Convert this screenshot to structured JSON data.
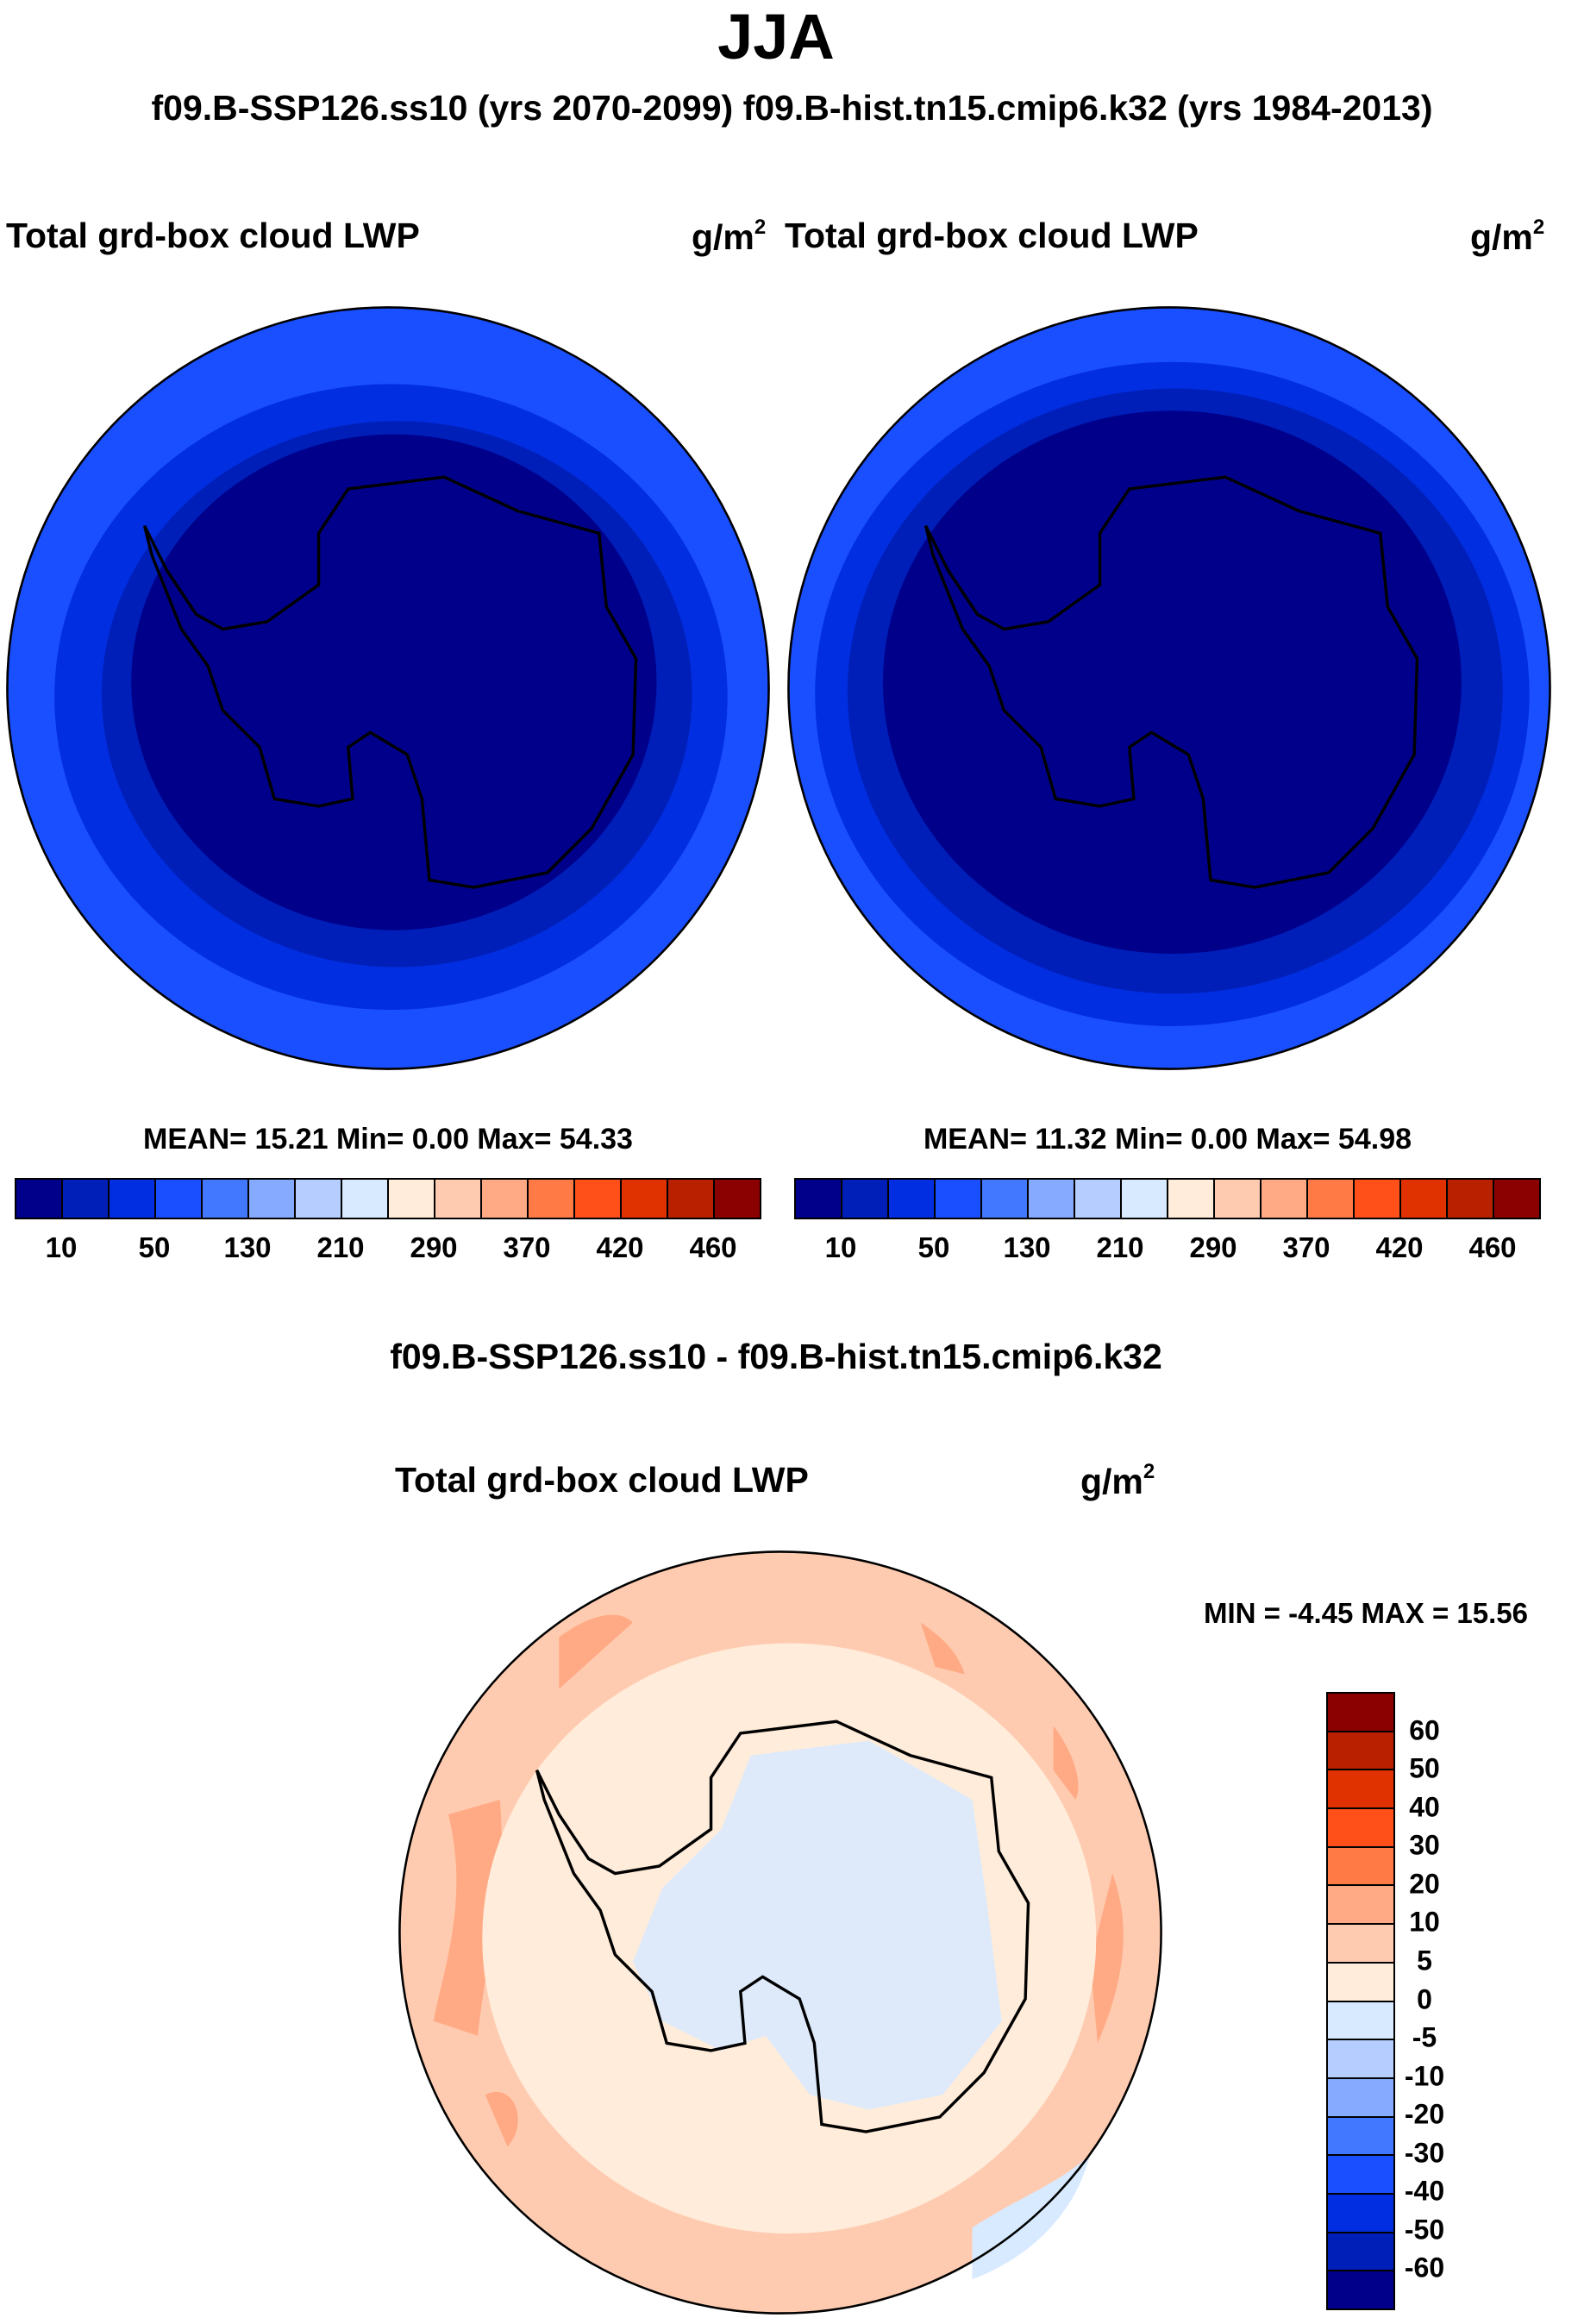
{
  "title": "JJA",
  "subtitle": "f09.B-SSP126.ss10 (yrs 2070-2099)  f09.B-hist.tn15.cmip6.k32 (yrs 1984-2013)",
  "chart_data": [
    {
      "type": "heatmap",
      "title": "Total grd-box cloud LWP",
      "units": "g/m",
      "units_exp": "2",
      "case": "f09.B-SSP126.ss10 (yrs 2070-2099)",
      "projection": "south polar stereographic",
      "stats": "MEAN=  15.21  Min=   0.00  Max=  54.33",
      "mean": 15.21,
      "min": 0.0,
      "max": 54.33,
      "colorbar_labels": [
        "10",
        "50",
        "130",
        "210",
        "290",
        "370",
        "420",
        "460"
      ]
    },
    {
      "type": "heatmap",
      "title": "Total grd-box cloud LWP",
      "units": "g/m",
      "units_exp": "2",
      "case": "f09.B-hist.tn15.cmip6.k32 (yrs 1984-2013)",
      "projection": "south polar stereographic",
      "stats": "MEAN=  11.32  Min=   0.00  Max=  54.98",
      "mean": 11.32,
      "min": 0.0,
      "max": 54.98,
      "colorbar_labels": [
        "10",
        "50",
        "130",
        "210",
        "290",
        "370",
        "420",
        "460"
      ]
    },
    {
      "type": "heatmap",
      "header": "f09.B-SSP126.ss10 - f09.B-hist.tn15.cmip6.k32",
      "title": "Total grd-box cloud LWP",
      "units": "g/m",
      "units_exp": "2",
      "projection": "south polar stereographic",
      "stats": "MIN =  -4.45 MAX =  15.56",
      "min": -4.45,
      "max": 15.56,
      "colorbar_labels": [
        "60",
        "50",
        "40",
        "30",
        "20",
        "10",
        "5",
        "0",
        "-5",
        "-10",
        "-20",
        "-30",
        "-40",
        "-50",
        "-60"
      ]
    }
  ],
  "colors": [
    "#00008b",
    "#001fb8",
    "#002ee0",
    "#1a4fff",
    "#4277ff",
    "#85aaff",
    "#b5cdff",
    "#d8eaff",
    "#ffecda",
    "#ffcbb0",
    "#ffaa85",
    "#ff7a45",
    "#ff501a",
    "#e03200",
    "#b82000",
    "#8b0000"
  ]
}
